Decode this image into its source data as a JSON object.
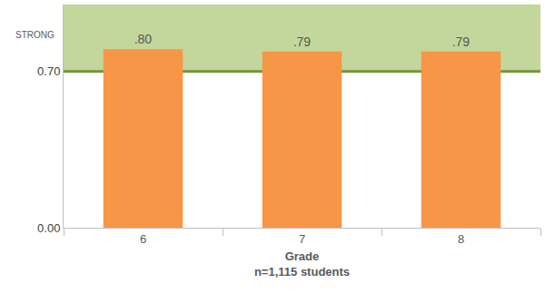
{
  "chart_data": {
    "type": "bar",
    "categories": [
      "6",
      "7",
      "8"
    ],
    "values": [
      0.8,
      0.79,
      0.79
    ],
    "value_labels": [
      ".80",
      ".79",
      ".79"
    ],
    "data_labels": true,
    "color": "#f79646",
    "x_label": [
      "Grade",
      "n=1,115 students"
    ],
    "ylim": [
      0,
      1.0
    ],
    "yticks": [
      {
        "value": 0,
        "label": "0.00"
      },
      {
        "value": 0.7,
        "label": "0.70"
      }
    ],
    "grid": false,
    "annotations": [
      {
        "text": "STRONG",
        "y_from": 0.7,
        "y_to": 1.0,
        "color": "#c3d69b"
      }
    ]
  }
}
